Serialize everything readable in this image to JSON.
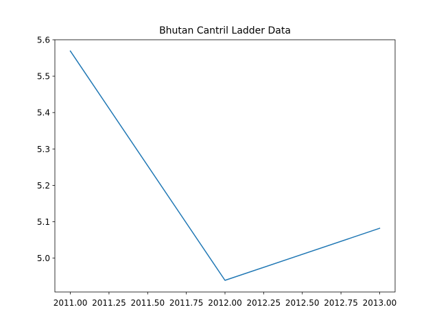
{
  "chart_data": {
    "type": "line",
    "title": "Bhutan Cantril Ladder Data",
    "xlabel": "",
    "ylabel": "",
    "x": [
      2011,
      2012,
      2013
    ],
    "series": [
      {
        "values": [
          5.569,
          4.939,
          5.082
        ],
        "color": "#1f77b4"
      }
    ],
    "xlim": [
      2010.9,
      2013.1
    ],
    "ylim": [
      4.907,
      5.6
    ],
    "x_ticks": [
      2011.0,
      2011.25,
      2011.5,
      2011.75,
      2012.0,
      2012.25,
      2012.5,
      2012.75,
      2013.0
    ],
    "x_tick_labels": [
      "2011.00",
      "2011.25",
      "2011.50",
      "2011.75",
      "2012.00",
      "2012.25",
      "2012.50",
      "2012.75",
      "2013.00"
    ],
    "y_ticks": [
      5.0,
      5.1,
      5.2,
      5.3,
      5.4,
      5.5,
      5.6
    ],
    "y_tick_labels": [
      "5.0",
      "5.1",
      "5.2",
      "5.3",
      "5.4",
      "5.5",
      "5.6"
    ],
    "grid": false,
    "legend": false
  }
}
